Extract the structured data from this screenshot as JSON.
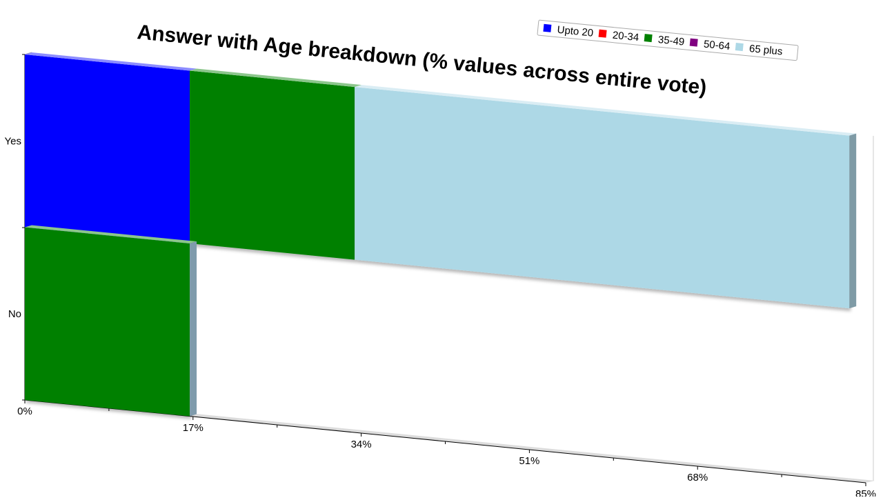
{
  "chart_data": {
    "type": "bar",
    "orientation": "horizontal",
    "stacked": true,
    "perspective": "3d",
    "title": "Answer with Age breakdown (% values across entire vote)",
    "categories": [
      "Yes",
      "No"
    ],
    "xlim": [
      0,
      85
    ],
    "x_ticks": [
      "0%",
      "17%",
      "34%",
      "51%",
      "68%",
      "85%"
    ],
    "legend_position": "top-right",
    "grid": false,
    "series": [
      {
        "name": "Upto 20",
        "color": "#0000ff",
        "values": [
          16.67,
          0
        ]
      },
      {
        "name": "20-34",
        "color": "#ff0000",
        "values": [
          0,
          0
        ]
      },
      {
        "name": "35-49",
        "color": "#008000",
        "values": [
          16.67,
          16.67
        ]
      },
      {
        "name": "50-64",
        "color": "#800080",
        "values": [
          0,
          0
        ]
      },
      {
        "name": "65 plus",
        "color": "#add8e6",
        "values": [
          50,
          0
        ]
      }
    ]
  }
}
